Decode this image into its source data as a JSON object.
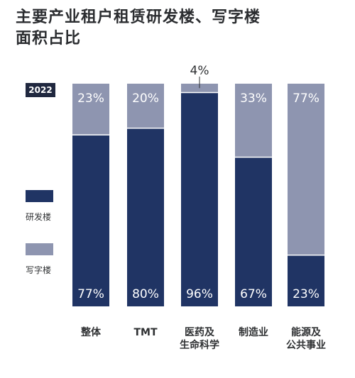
{
  "title_lines": [
    "主要产业租户租赁研发楼、写字楼",
    "面积占比"
  ],
  "year": "2022",
  "legend": {
    "rd_label": "研发楼",
    "office_label": "写字楼"
  },
  "colors": {
    "rd": "#203464",
    "office": "#8e95b0",
    "badge": "#20283f",
    "value_text": "#ffffff",
    "outside_text": "#2f3133"
  },
  "chart_data": {
    "type": "bar",
    "stacked": true,
    "unit": "%",
    "ylim": [
      0,
      100
    ],
    "grid": false,
    "legend_position": "left",
    "categories": [
      [
        "整体"
      ],
      [
        "TMT"
      ],
      [
        "医药及",
        "生命科学"
      ],
      [
        "制造业"
      ],
      [
        "能源及",
        "公共事业"
      ]
    ],
    "series": [
      {
        "name": "研发楼",
        "values": [
          77,
          80,
          96,
          67,
          23
        ]
      },
      {
        "name": "写字楼",
        "values": [
          23,
          20,
          4,
          33,
          77
        ]
      }
    ]
  }
}
